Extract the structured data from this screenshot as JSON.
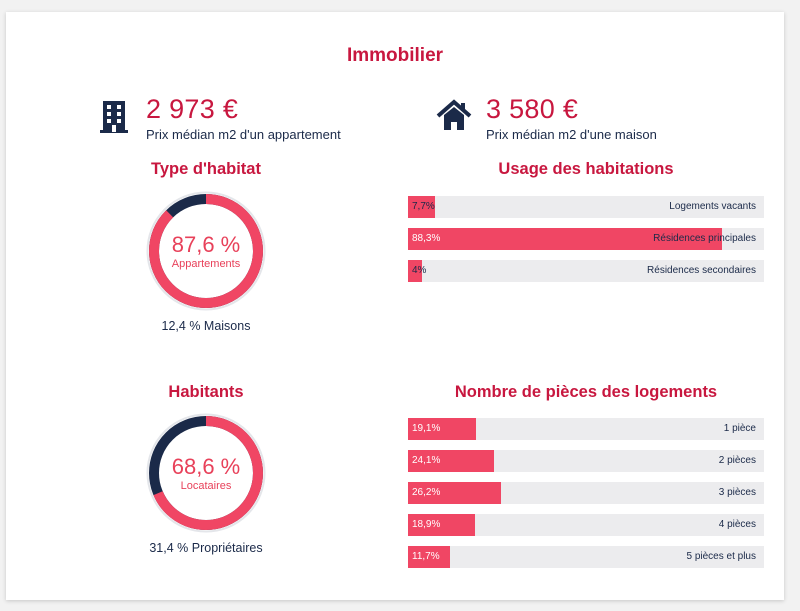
{
  "title": "Immobilier",
  "prices": [
    {
      "value": "2 973 €",
      "label": "Prix médian m2 d'un appartement",
      "icon": "building-icon"
    },
    {
      "value": "3 580 €",
      "label": "Prix médian m2 d'une maison",
      "icon": "house-icon"
    }
  ],
  "type_habitat": {
    "title": "Type d'habitat",
    "pct": "87,6 %",
    "sub": "Appartements",
    "share": 0.876,
    "caption": "12,4 % Maisons"
  },
  "habitants": {
    "title": "Habitants",
    "pct": "68,6 %",
    "sub": "Locataires",
    "share": 0.686,
    "caption": "31,4 % Propriétaires"
  },
  "usage": {
    "title": "Usage des habitations",
    "rows": [
      {
        "value": "7,7%",
        "label": "Logements vacants",
        "pct": 7.7
      },
      {
        "value": "88,3%",
        "label": "Résidences principales",
        "pct": 88.3
      },
      {
        "value": "4%",
        "label": "Résidences secondaires",
        "pct": 4
      }
    ]
  },
  "pieces": {
    "title": "Nombre de pièces des logements",
    "rows": [
      {
        "value": "19,1%",
        "label": "1 pièce",
        "pct": 19.1
      },
      {
        "value": "24,1%",
        "label": "2 pièces",
        "pct": 24.1
      },
      {
        "value": "26,2%",
        "label": "3 pièces",
        "pct": 26.2
      },
      {
        "value": "18,9%",
        "label": "4 pièces",
        "pct": 18.9
      },
      {
        "value": "11,7%",
        "label": "5 pièces et plus",
        "pct": 11.7
      }
    ]
  },
  "colors": {
    "accent": "#c8173f",
    "bar": "#f04664",
    "navy": "#1b2a49",
    "track": "#ececee"
  }
}
